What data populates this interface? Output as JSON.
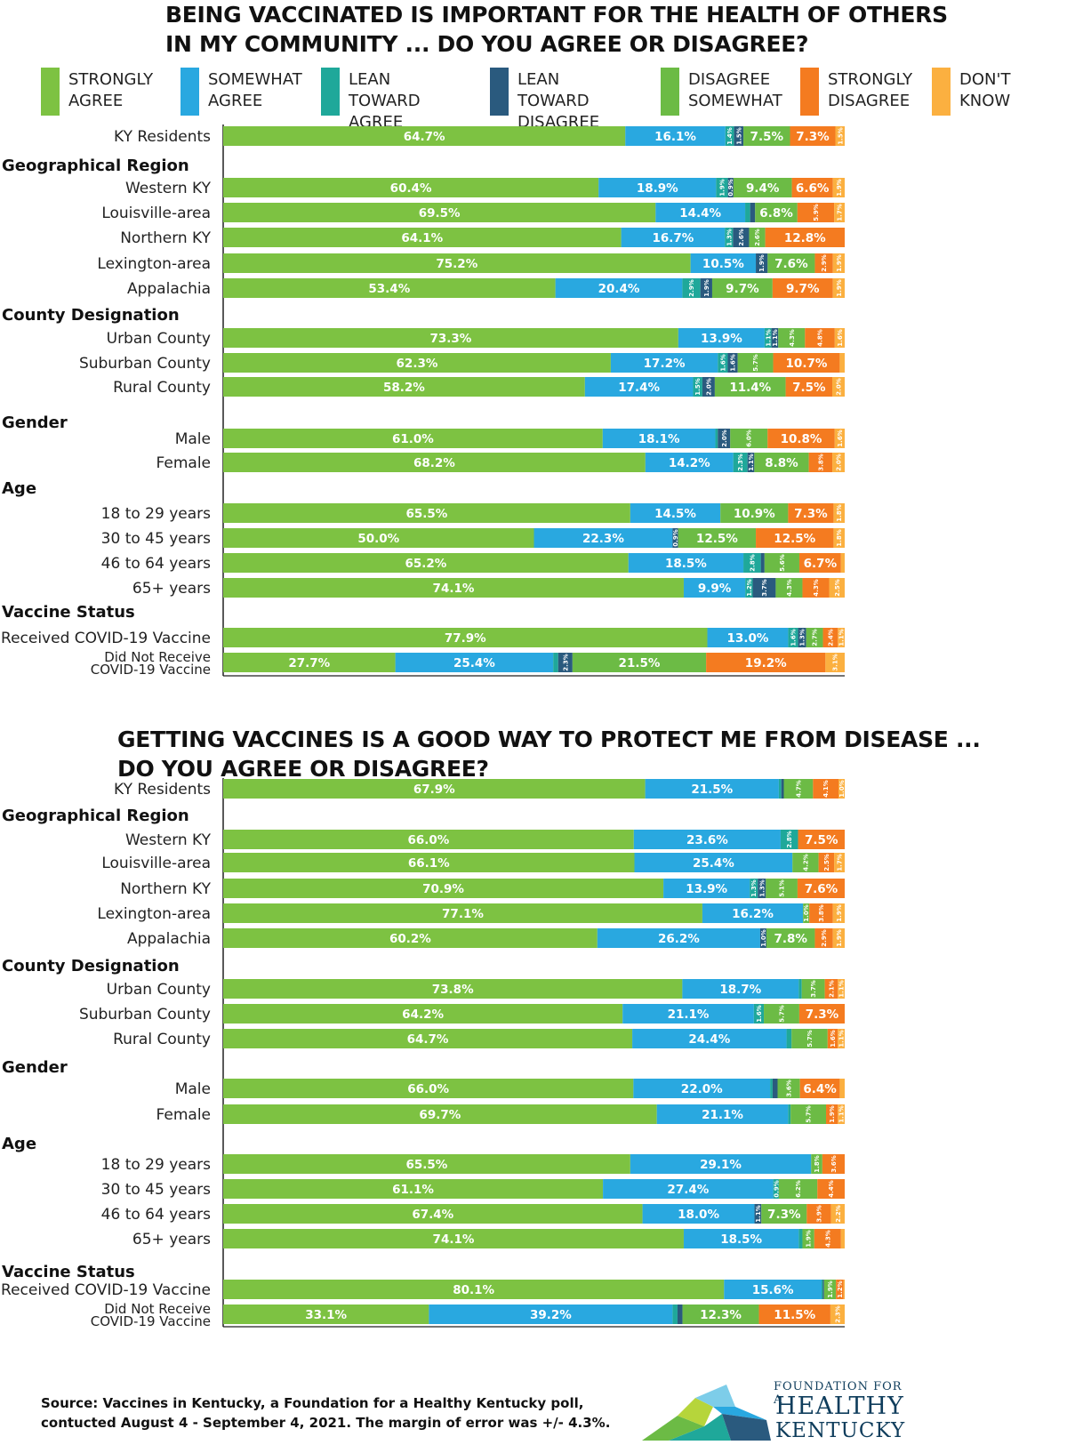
{
  "colors": {
    "strongly_agree": "#7dc242",
    "somewhat_agree": "#29a8e0",
    "lean_agree": "#1fa89a",
    "lean_disagree": "#2a5a7e",
    "disagree_somewhat": "#6cbb45",
    "strongly_disagree": "#f47b20",
    "dont_know": "#fbb040"
  },
  "legend": [
    {
      "label": "STRONGLY\nAGREE",
      "color": "#7dc242"
    },
    {
      "label": "SOMEWHAT\nAGREE",
      "color": "#29a8e0"
    },
    {
      "label": "LEAN TOWARD\nAGREE",
      "color": "#1fa89a"
    },
    {
      "label": "LEAN TOWARD\nDISAGREE",
      "color": "#2a5a7e"
    },
    {
      "label": "DISAGREE\nSOMEWHAT",
      "color": "#6cbb45"
    },
    {
      "label": "STRONGLY\nDISAGREE",
      "color": "#f47b20"
    },
    {
      "label": "DON'T\nKNOW",
      "color": "#fbb040"
    }
  ],
  "chart_data": [
    {
      "type": "bar",
      "orientation": "horizontal-stacked",
      "title": "BEING VACCINATED IS IMPORTANT FOR THE HEALTH OF OTHERS IN MY COMMUNITY ... DO YOU AGREE OR DISAGREE?",
      "series_order": [
        "STRONGLY AGREE",
        "SOMEWHAT AGREE",
        "LEAN TOWARD AGREE",
        "LEAN TOWARD DISAGREE",
        "DISAGREE SOMEWHAT",
        "STRONGLY DISAGREE",
        "DON'T KNOW"
      ],
      "xlim": [
        0,
        100
      ],
      "groups": [
        {
          "heading": "",
          "rows": [
            {
              "label": "KY Residents",
              "values": [
                64.7,
                16.1,
                1.4,
                1.5,
                7.5,
                7.3,
                1.5
              ]
            }
          ]
        },
        {
          "heading": "Geographical Region",
          "rows": [
            {
              "label": "Western KY",
              "values": [
                60.4,
                18.9,
                1.9,
                0.9,
                9.4,
                6.6,
                1.9
              ]
            },
            {
              "label": "Louisville-area",
              "values": [
                69.5,
                14.4,
                0.8,
                0.8,
                6.8,
                5.9,
                1.7
              ]
            },
            {
              "label": "Northern KY",
              "values": [
                64.1,
                16.7,
                1.3,
                2.6,
                2.6,
                12.8,
                0.0
              ]
            },
            {
              "label": "Lexington-area",
              "values": [
                75.2,
                10.5,
                0.0,
                1.9,
                7.6,
                2.9,
                1.9
              ]
            },
            {
              "label": "Appalachia",
              "values": [
                53.4,
                20.4,
                2.9,
                1.9,
                9.7,
                9.7,
                1.9
              ]
            }
          ]
        },
        {
          "heading": "County Designation",
          "rows": [
            {
              "label": "Urban County",
              "values": [
                73.3,
                13.9,
                1.1,
                1.1,
                4.3,
                4.8,
                1.6
              ]
            },
            {
              "label": "Suburban County",
              "values": [
                62.3,
                17.2,
                1.6,
                1.6,
                5.7,
                10.7,
                0.8
              ]
            },
            {
              "label": "Rural County",
              "values": [
                58.2,
                17.4,
                1.5,
                2.0,
                11.4,
                7.5,
                2.0
              ]
            }
          ]
        },
        {
          "heading": "Gender",
          "rows": [
            {
              "label": "Male",
              "values": [
                61.0,
                18.1,
                0.4,
                2.0,
                6.0,
                10.8,
                1.6
              ]
            },
            {
              "label": "Female",
              "values": [
                68.2,
                14.2,
                2.3,
                1.1,
                8.8,
                3.8,
                2.0
              ]
            }
          ]
        },
        {
          "heading": "Age",
          "rows": [
            {
              "label": "18 to 29 years",
              "values": [
                65.5,
                14.5,
                0.0,
                0.0,
                10.9,
                7.3,
                1.8
              ]
            },
            {
              "label": "30 to 45 years",
              "values": [
                50.0,
                22.3,
                0.0,
                0.9,
                12.5,
                12.5,
                1.8
              ]
            },
            {
              "label": "46 to 64 years",
              "values": [
                65.2,
                18.5,
                2.8,
                0.6,
                5.6,
                6.7,
                0.6
              ]
            },
            {
              "label": "65+ years",
              "values": [
                74.1,
                9.9,
                1.2,
                3.7,
                4.3,
                4.3,
                2.5
              ]
            }
          ]
        },
        {
          "heading": "Vaccine Status",
          "rows": [
            {
              "label": "Received COVID-19 Vaccine",
              "values": [
                77.9,
                13.0,
                1.6,
                1.3,
                2.7,
                2.4,
                1.1
              ]
            },
            {
              "label": "Did Not Receive\nCOVID-19 Vaccine",
              "values": [
                27.7,
                25.4,
                0.8,
                2.3,
                21.5,
                19.2,
                3.1
              ]
            }
          ]
        }
      ]
    },
    {
      "type": "bar",
      "orientation": "horizontal-stacked",
      "title": "GETTING VACCINES IS A GOOD WAY TO PROTECT ME FROM DISEASE ... DO YOU AGREE OR DISAGREE?",
      "series_order": [
        "STRONGLY AGREE",
        "SOMEWHAT AGREE",
        "LEAN TOWARD AGREE",
        "LEAN TOWARD DISAGREE",
        "DISAGREE SOMEWHAT",
        "STRONGLY DISAGREE",
        "DON'T KNOW"
      ],
      "xlim": [
        0,
        100
      ],
      "groups": [
        {
          "heading": "",
          "rows": [
            {
              "label": "KY Residents",
              "values": [
                67.9,
                21.5,
                0.4,
                0.4,
                4.7,
                4.1,
                1.0
              ]
            }
          ]
        },
        {
          "heading": "Geographical Region",
          "rows": [
            {
              "label": "Western KY",
              "values": [
                66.0,
                23.6,
                2.8,
                0.0,
                0.0,
                7.5,
                0.0
              ]
            },
            {
              "label": "Louisville-area",
              "values": [
                66.1,
                25.4,
                0.0,
                0.0,
                4.2,
                2.5,
                1.7
              ]
            },
            {
              "label": "Northern KY",
              "values": [
                70.9,
                13.9,
                1.3,
                1.3,
                5.1,
                7.6,
                0.0
              ]
            },
            {
              "label": "Lexington-area",
              "values": [
                77.1,
                16.2,
                0.0,
                0.0,
                1.0,
                3.8,
                1.9
              ]
            },
            {
              "label": "Appalachia",
              "values": [
                60.2,
                26.2,
                0.0,
                1.0,
                7.8,
                2.9,
                1.9
              ]
            }
          ]
        },
        {
          "heading": "County Designation",
          "rows": [
            {
              "label": "Urban County",
              "values": [
                73.8,
                18.7,
                0.5,
                0.0,
                3.7,
                2.1,
                1.1
              ]
            },
            {
              "label": "Suburban County",
              "values": [
                64.2,
                21.1,
                1.6,
                0.0,
                5.7,
                7.3,
                0.0
              ]
            },
            {
              "label": "Rural County",
              "values": [
                64.7,
                24.4,
                0.8,
                0.0,
                5.7,
                1.6,
                1.1
              ]
            }
          ]
        },
        {
          "heading": "Gender",
          "rows": [
            {
              "label": "Male",
              "values": [
                66.0,
                22.0,
                0.4,
                0.8,
                3.6,
                6.4,
                0.8
              ]
            },
            {
              "label": "Female",
              "values": [
                69.7,
                21.1,
                0.4,
                0.0,
                5.7,
                1.9,
                1.1
              ]
            }
          ]
        },
        {
          "heading": "Age",
          "rows": [
            {
              "label": "18 to 29 years",
              "values": [
                65.5,
                29.1,
                0.0,
                0.0,
                1.8,
                3.6,
                0.0
              ]
            },
            {
              "label": "30 to 45 years",
              "values": [
                61.1,
                27.4,
                0.9,
                0.0,
                6.2,
                4.4,
                0.0
              ]
            },
            {
              "label": "46 to 64 years",
              "values": [
                67.4,
                18.0,
                0.0,
                1.1,
                7.3,
                3.9,
                2.2
              ]
            },
            {
              "label": "65+ years",
              "values": [
                74.1,
                18.5,
                0.6,
                0.0,
                1.9,
                4.3,
                0.6
              ]
            }
          ]
        },
        {
          "heading": "Vaccine Status",
          "rows": [
            {
              "label": "Received COVID-19 Vaccine",
              "values": [
                80.1,
                15.6,
                0.2,
                0.2,
                1.9,
                1.2,
                0.2
              ]
            },
            {
              "label": "Did Not Receive\nCOVID-19 Vaccine",
              "values": [
                33.1,
                39.2,
                0.8,
                0.8,
                12.3,
                11.5,
                2.3
              ]
            }
          ]
        }
      ]
    }
  ],
  "source": "Source: Vaccines in Kentucky, a Foundation for a Healthy Kentucky poll,\ncontucted August 4 - September 4, 2021.  The margin of error was +/- 4.3%.",
  "logo": {
    "line1": "FOUNDATION FOR A",
    "line2": "HEALTHY",
    "line3": "KENTUCKY"
  }
}
